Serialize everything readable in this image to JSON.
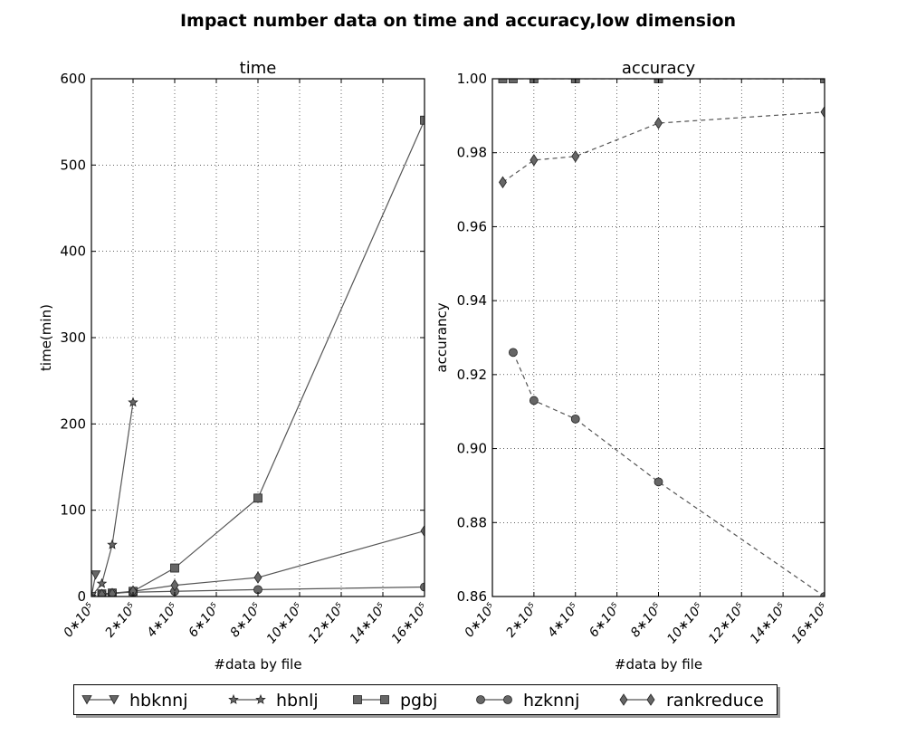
{
  "figure": {
    "title": "Impact number data on time and accuracy,low dimension"
  },
  "legend": [
    "hbknnj",
    "hbnlj",
    "pgbj",
    "hzknnj",
    "rankreduce"
  ],
  "chart_data": [
    {
      "type": "line",
      "title": "time",
      "xlabel": "#data by file",
      "ylabel": "time(min)",
      "xlim": [
        0,
        1600000
      ],
      "ylim": [
        0,
        600
      ],
      "grid": true,
      "x_ticks": [
        0,
        200000,
        400000,
        600000,
        800000,
        1000000,
        1200000,
        1400000,
        1600000
      ],
      "x_tick_labels": [
        "0∗10⁵",
        "2∗10⁵",
        "4∗10⁵",
        "6∗10⁵",
        "8∗10⁵",
        "10∗10⁵",
        "12∗10⁵",
        "14∗10⁵",
        "16∗10⁵"
      ],
      "y_ticks": [
        0,
        100,
        200,
        300,
        400,
        500,
        600
      ],
      "y_tick_labels": [
        "0",
        "100",
        "200",
        "300",
        "400",
        "500",
        "600"
      ],
      "series": [
        {
          "name": "hbknnj",
          "marker": "triangle-down",
          "line": "solid",
          "x": [
            0,
            20000
          ],
          "y": [
            0,
            25
          ]
        },
        {
          "name": "hbnlj",
          "marker": "star",
          "line": "solid",
          "x": [
            0,
            50000,
            100000,
            200000
          ],
          "y": [
            0,
            15,
            60,
            225
          ]
        },
        {
          "name": "pgbj",
          "marker": "square",
          "line": "solid",
          "x": [
            50000,
            100000,
            200000,
            400000,
            800000,
            1600000
          ],
          "y": [
            3,
            4,
            6,
            33,
            114,
            552
          ]
        },
        {
          "name": "hzknnj",
          "marker": "circle",
          "line": "solid",
          "x": [
            50000,
            100000,
            200000,
            400000,
            800000,
            1600000
          ],
          "y": [
            3,
            4,
            5,
            6,
            8,
            11
          ]
        },
        {
          "name": "rankreduce",
          "marker": "diamond",
          "line": "solid",
          "x": [
            50000,
            100000,
            200000,
            400000,
            800000,
            1600000
          ],
          "y": [
            2,
            3,
            6,
            13,
            22,
            76
          ]
        }
      ]
    },
    {
      "type": "line",
      "title": "accuracy",
      "xlabel": "#data by file",
      "ylabel": "accurancy",
      "xlim": [
        0,
        1600000
      ],
      "ylim": [
        0.86,
        1.0
      ],
      "grid": true,
      "x_ticks": [
        0,
        200000,
        400000,
        600000,
        800000,
        1000000,
        1200000,
        1400000,
        1600000
      ],
      "x_tick_labels": [
        "0∗10⁵",
        "2∗10⁵",
        "4∗10⁵",
        "6∗10⁵",
        "8∗10⁵",
        "10∗10⁵",
        "12∗10⁵",
        "14∗10⁵",
        "16∗10⁵"
      ],
      "y_ticks": [
        0.86,
        0.88,
        0.9,
        0.92,
        0.94,
        0.96,
        0.98,
        1.0
      ],
      "y_tick_labels": [
        "0.86",
        "0.88",
        "0.90",
        "0.92",
        "0.94",
        "0.96",
        "0.98",
        "1.00"
      ],
      "series": [
        {
          "name": "pgbj",
          "marker": "square",
          "line": "dashed",
          "x": [
            50000,
            100000,
            200000,
            400000,
            800000,
            1600000
          ],
          "y": [
            1.0,
            1.0,
            1.0,
            1.0,
            1.0,
            1.0
          ]
        },
        {
          "name": "hzknnj",
          "marker": "circle",
          "line": "dashed",
          "x": [
            100000,
            200000,
            400000,
            800000,
            1600000
          ],
          "y": [
            0.926,
            0.913,
            0.908,
            0.891,
            0.86
          ]
        },
        {
          "name": "rankreduce",
          "marker": "diamond",
          "line": "dashed",
          "x": [
            50000,
            200000,
            400000,
            800000,
            1600000
          ],
          "y": [
            0.972,
            0.978,
            0.979,
            0.988,
            0.991
          ]
        }
      ]
    }
  ]
}
